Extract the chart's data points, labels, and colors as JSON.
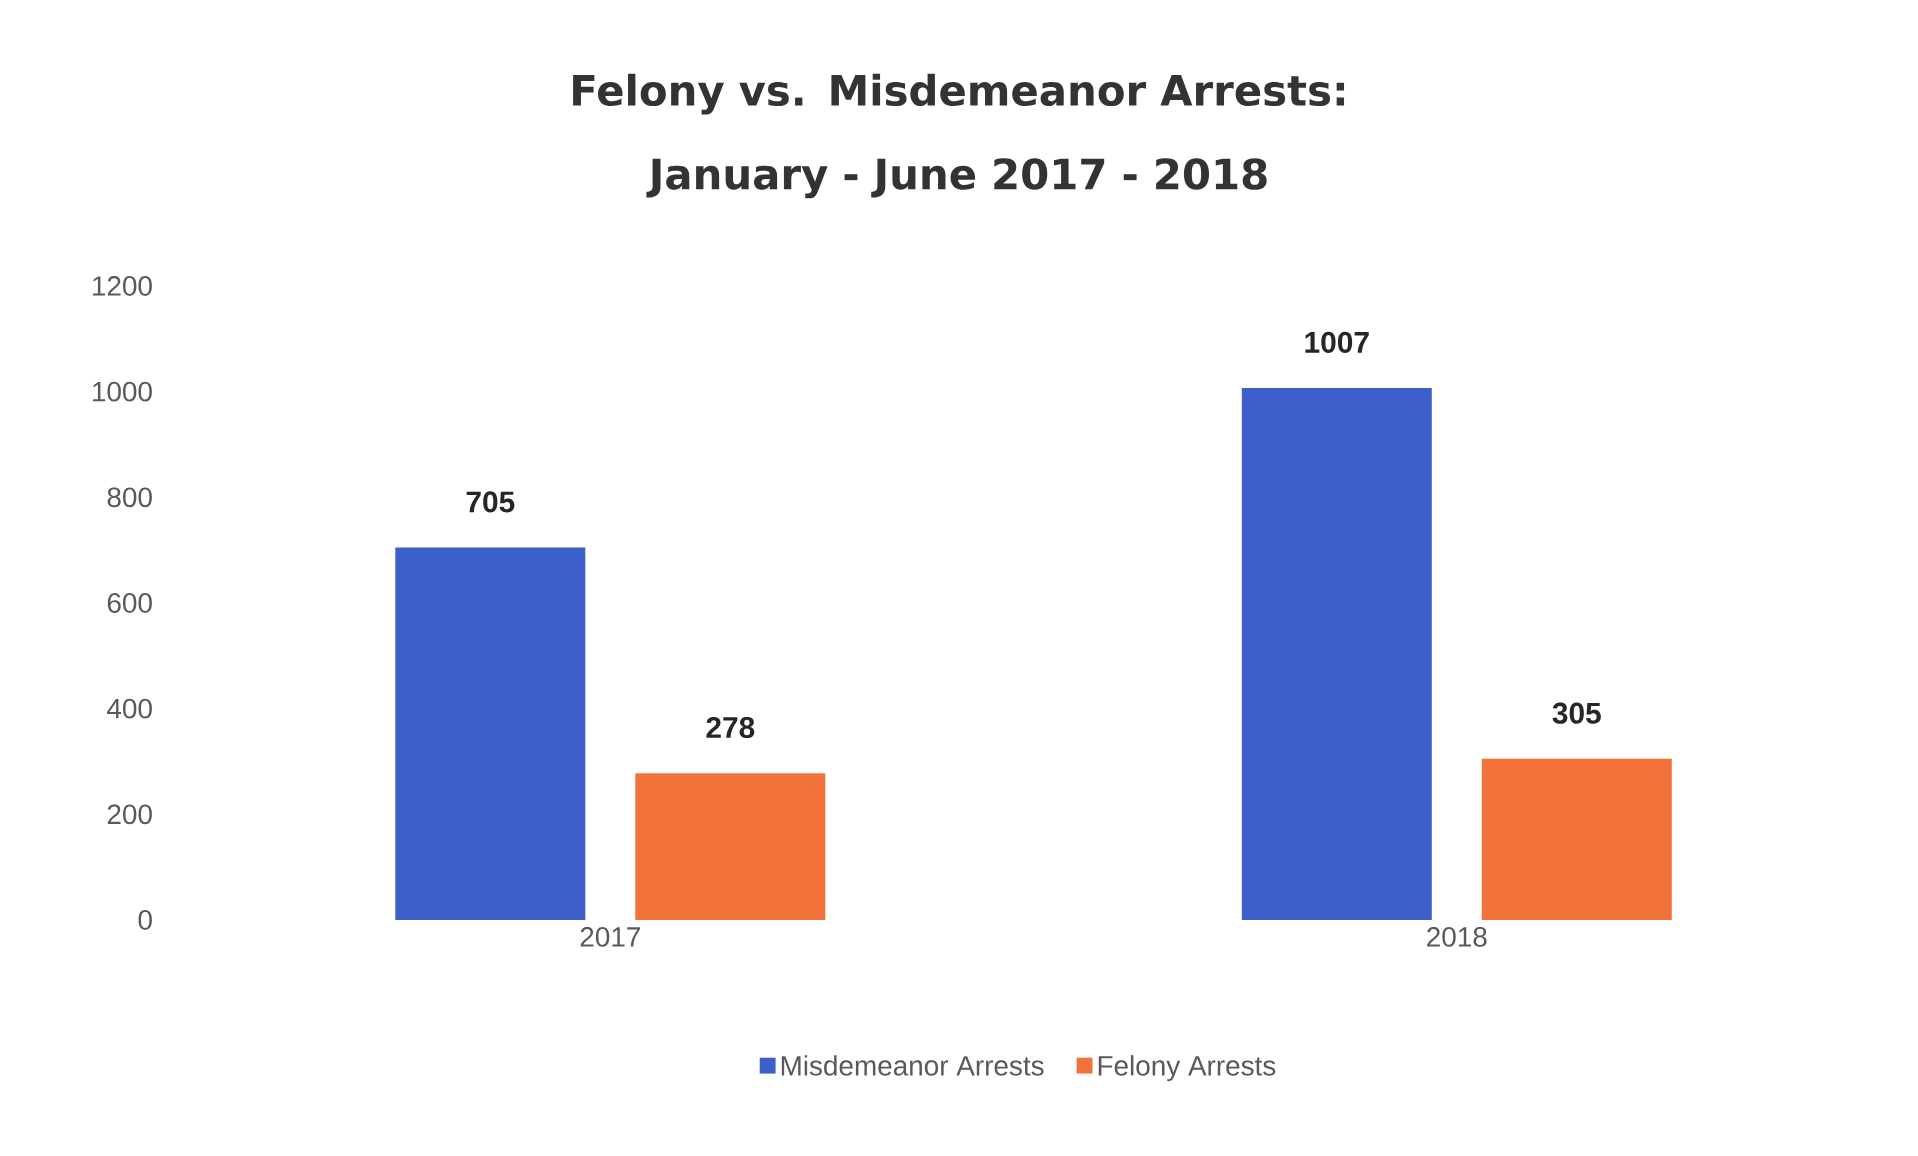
{
  "chart_data": {
    "type": "bar",
    "title": "Felony vs. Misdemeanor Arrests: January - June 2017 - 2018",
    "categories": [
      "2017",
      "2018"
    ],
    "series": [
      {
        "name": "Misdemeanor Arrests",
        "color": "#3d5fc9",
        "values": [
          705,
          1007
        ]
      },
      {
        "name": "Felony Arrests",
        "color": "#f2733a",
        "values": [
          278,
          305
        ]
      }
    ],
    "ylim": [
      0,
      1200
    ],
    "yticks": [
      0,
      200,
      400,
      600,
      800,
      1000,
      1200
    ],
    "data_labels": true,
    "grid": false,
    "legend": "bottom"
  }
}
